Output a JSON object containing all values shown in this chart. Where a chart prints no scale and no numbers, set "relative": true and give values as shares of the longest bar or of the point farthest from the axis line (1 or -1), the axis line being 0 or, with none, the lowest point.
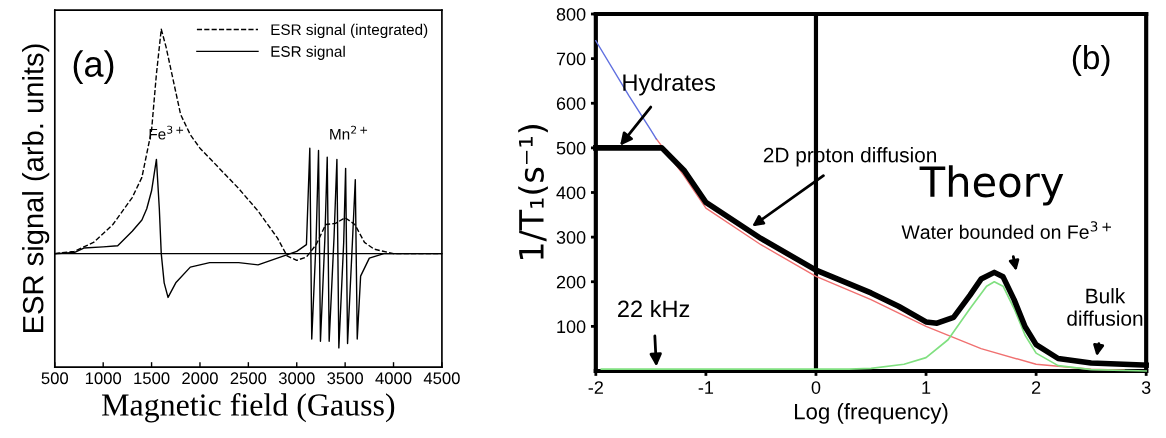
{
  "chart_data": [
    {
      "type": "line",
      "relative": true,
      "xlabel": "Magnetic field (Gauss)",
      "ylabel": "ESR signal (arb. units)",
      "xlim": [
        500,
        4500
      ],
      "xticks": [
        500,
        1000,
        1500,
        2000,
        2500,
        3000,
        3500,
        4000,
        4500
      ],
      "tick_labels": "x",
      "legend": "top right",
      "grid": false,
      "series": [
        {
          "name": "ESR signal (integrated)",
          "color": "#000000",
          "line_style": "dashed",
          "x": [
            500,
            700,
            900,
            1100,
            1300,
            1400,
            1500,
            1550,
            1600,
            1650,
            1700,
            1800,
            1900,
            2000,
            2200,
            2400,
            2600,
            2800,
            2900,
            3000,
            3100,
            3200,
            3300,
            3400,
            3500,
            3600,
            3700,
            3800,
            4000,
            4500
          ],
          "values": [
            0,
            0.01,
            0.05,
            0.13,
            0.25,
            0.34,
            0.55,
            0.8,
            1.0,
            0.92,
            0.82,
            0.62,
            0.53,
            0.47,
            0.38,
            0.29,
            0.19,
            0.07,
            -0.01,
            -0.03,
            -0.015,
            0.04,
            0.13,
            0.135,
            0.16,
            0.13,
            0.05,
            0.02,
            0,
            0
          ]
        },
        {
          "name": "ESR signal",
          "color": "#000000",
          "line_style": "solid",
          "x": [
            500,
            700,
            800,
            1000,
            1150,
            1300,
            1400,
            1450,
            1500,
            1550,
            1580,
            1600,
            1630,
            1670,
            1750,
            1900,
            2100,
            2400,
            2600,
            2800,
            3000,
            3100,
            3135,
            3155,
            3200,
            3225,
            3245,
            3290,
            3315,
            3335,
            3385,
            3415,
            3435,
            3485,
            3505,
            3525,
            3575,
            3605,
            3625,
            3660,
            3750,
            3900,
            4500
          ],
          "values": [
            0,
            0.005,
            0.025,
            0.03,
            0.035,
            0.1,
            0.15,
            0.2,
            0.28,
            0.42,
            0.2,
            0,
            -0.13,
            -0.195,
            -0.13,
            -0.06,
            -0.04,
            -0.04,
            -0.05,
            -0.02,
            0.01,
            0.04,
            0.47,
            -0.38,
            0.06,
            0.46,
            -0.39,
            0.06,
            0.43,
            -0.39,
            0.07,
            0.42,
            -0.42,
            0.05,
            0.38,
            -0.4,
            0.05,
            0.33,
            -0.38,
            -0.1,
            -0.02,
            0,
            0
          ]
        }
      ],
      "ref_lines": [
        {
          "axis": "y",
          "value": 0,
          "color": "#000000"
        }
      ],
      "annotations": [
        "(a)",
        {
          "text": "Fe$^{3+}$",
          "x": 1550,
          "y": 0.42
        },
        {
          "text": "Mn$^{2+}$",
          "x": 3420,
          "y": 0.42
        }
      ]
    },
    {
      "type": "line",
      "xlabel": "Log (frequency)",
      "ylabel": "1/T₁(s⁻¹)",
      "xlim": [
        -2,
        3
      ],
      "xticks": [
        {
          "value": -2,
          "label": "-2"
        },
        {
          "value": -1,
          "label": "-1"
        },
        0,
        1,
        2,
        3
      ],
      "ylim": [
        0,
        800
      ],
      "yticks": [
        100,
        200,
        300,
        400,
        500,
        600,
        700,
        800
      ],
      "grid": false,
      "series": [
        {
          "color": "#f07070",
          "x": [
            -1.45,
            -1.2,
            -1,
            -0.5,
            0,
            0.5,
            1,
            1.5,
            2,
            2.5,
            2.8
          ],
          "values": [
            520,
            438,
            365,
            283,
            212,
            160,
            100,
            50,
            15,
            4,
            2
          ]
        },
        {
          "color": "#6070e0",
          "x": [
            -2,
            -1.7,
            -1.5,
            -1.45
          ],
          "values": [
            740,
            617,
            540,
            520
          ]
        },
        {
          "color": "#80e080",
          "x": [
            -1.95,
            0.3,
            0.5,
            0.8,
            1,
            1.2,
            1.4,
            1.55,
            1.62,
            1.7,
            1.8,
            1.9,
            2,
            2.2,
            2.5,
            3
          ],
          "values": [
            4,
            4,
            6,
            15,
            30,
            70,
            140,
            190,
            200,
            190,
            140,
            80,
            40,
            12,
            3,
            0
          ]
        },
        {
          "color": "#000000",
          "x": [
            -2,
            -1.4,
            -1.2,
            -1,
            -0.5,
            0,
            0.5,
            0.75,
            1,
            1.1,
            1.25,
            1.4,
            1.5,
            1.62,
            1.7,
            1.8,
            1.9,
            2,
            2.2,
            2.5,
            3
          ],
          "values": [
            500,
            500,
            450,
            378,
            297,
            226,
            175,
            145,
            110,
            107,
            120,
            170,
            206,
            221,
            211,
            160,
            99,
            59,
            28,
            18,
            13
          ]
        }
      ],
      "ref_lines": [
        {
          "axis": "x",
          "value": 0,
          "color": "#000000"
        }
      ],
      "annotations": [
        "(b)",
        {
          "text": "Hydrates",
          "x": -1.78,
          "y": 505
        },
        "2D proton diffusion",
        "Theory",
        "Water bounded on Fe$^{3+}$",
        {
          "text": "Bulk\ndiffusion",
          "x": 2.55,
          "y": 33
        },
        {
          "text": "22 kHz",
          "x": -1.45,
          "y": 10
        }
      ]
    }
  ]
}
